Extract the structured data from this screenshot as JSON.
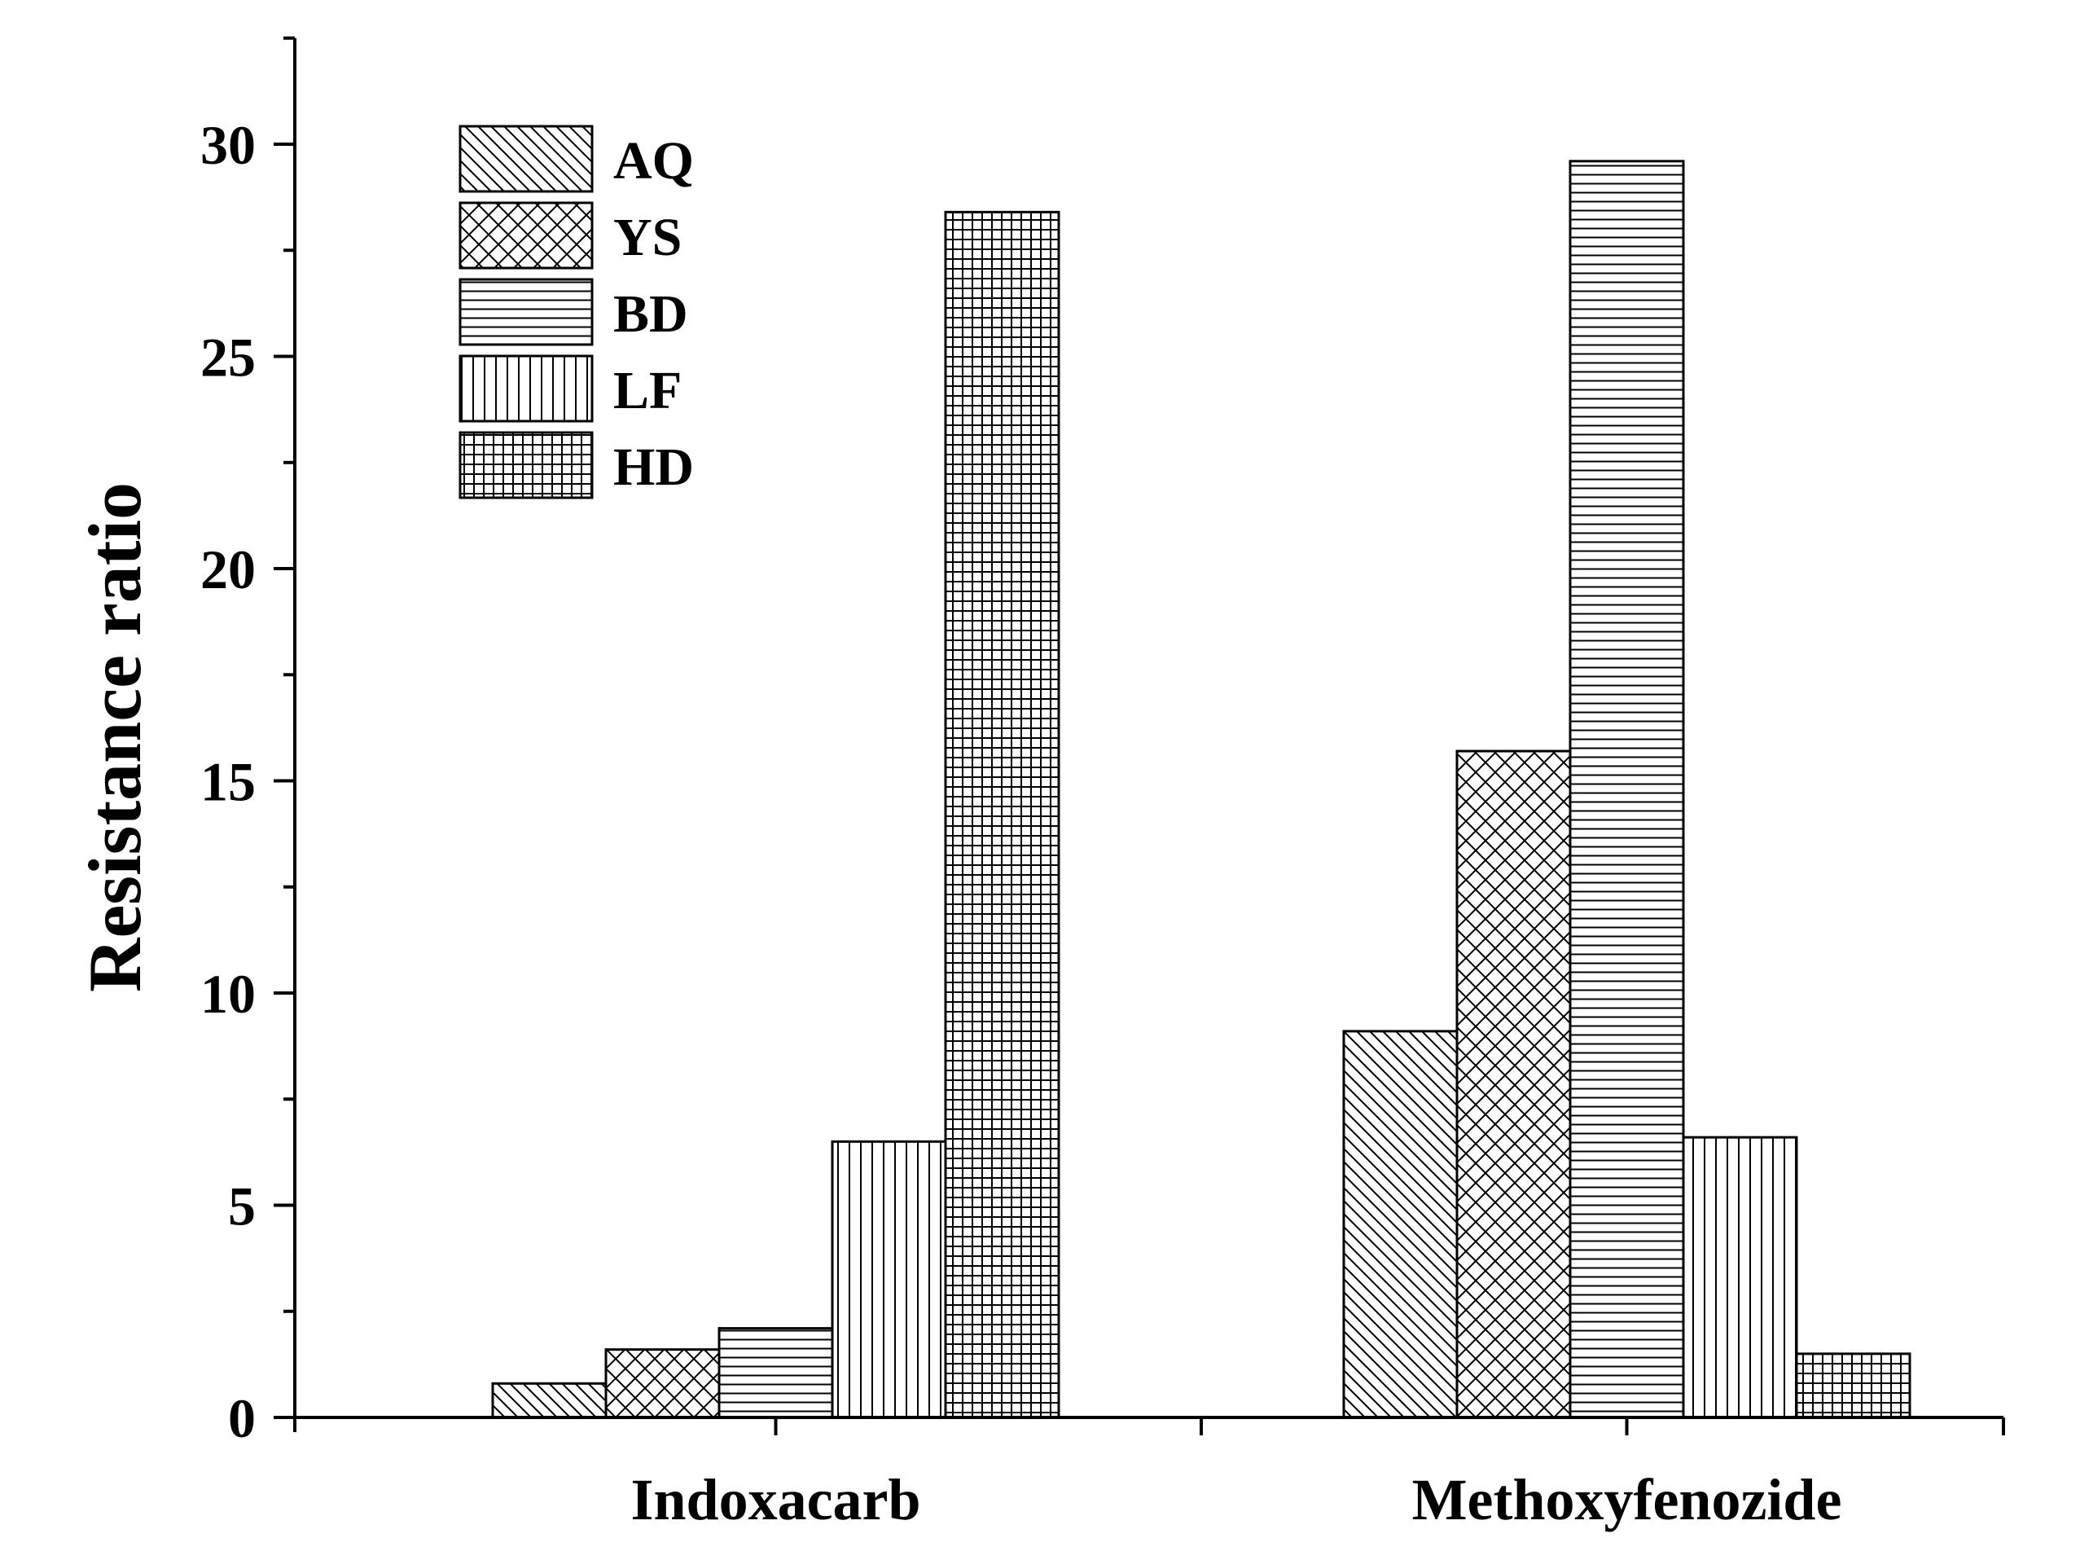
{
  "chart_data": {
    "type": "bar",
    "title": "",
    "xlabel": "",
    "ylabel": "Resistance ratio",
    "categories": [
      "Indoxacarb",
      "Methoxyfenozide"
    ],
    "ylim": [
      0,
      32.5
    ],
    "yticks": [
      0,
      5,
      10,
      15,
      20,
      25,
      30
    ],
    "ytick_labels": [
      "0",
      "5",
      "10",
      "15",
      "20",
      "25",
      "30"
    ],
    "legend_position": "top-left",
    "series": [
      {
        "name": "AQ",
        "pattern": "diagonal",
        "values": [
          0.8,
          9.1
        ]
      },
      {
        "name": "YS",
        "pattern": "crosshatch-diagonal",
        "values": [
          1.6,
          15.7
        ]
      },
      {
        "name": "BD",
        "pattern": "horizontal",
        "values": [
          2.1,
          29.6
        ]
      },
      {
        "name": "LF",
        "pattern": "vertical",
        "values": [
          6.5,
          6.6
        ]
      },
      {
        "name": "HD",
        "pattern": "grid",
        "values": [
          28.4,
          1.5
        ]
      }
    ]
  }
}
